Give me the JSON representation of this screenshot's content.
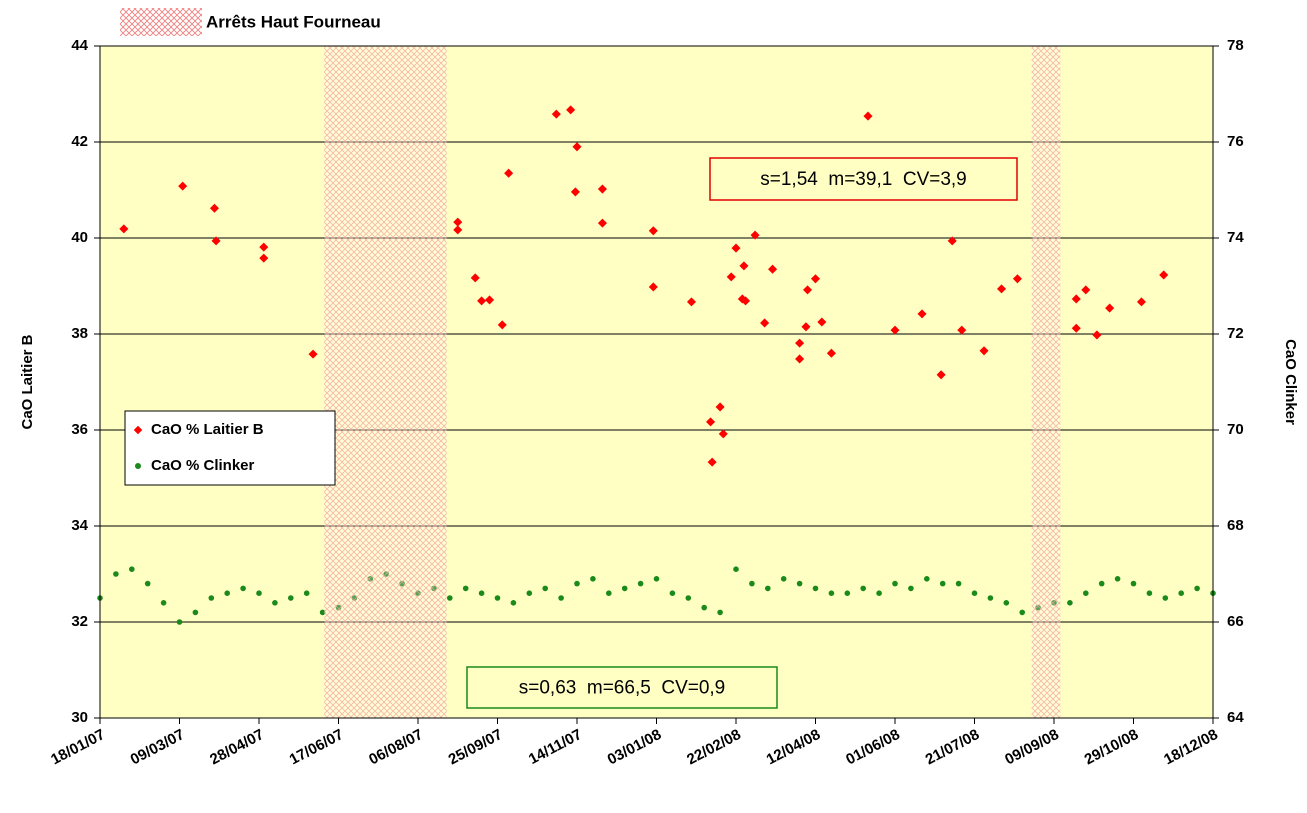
{
  "chart_data": {
    "type": "scatter",
    "y_label": "CaO Laitier B",
    "y2_label": "CaO Clinker",
    "ylim": [
      30,
      44
    ],
    "yticks": [
      30,
      32,
      34,
      36,
      38,
      40,
      42,
      44
    ],
    "y2lim": [
      64,
      78
    ],
    "y2ticks": [
      64,
      66,
      68,
      70,
      72,
      74,
      76,
      78
    ],
    "xlim": [
      "2007-01-18",
      "2008-12-18"
    ],
    "xticks": [
      {
        "value": "2007-01-18",
        "label": "18/01/07"
      },
      {
        "value": "2007-03-09",
        "label": "09/03/07"
      },
      {
        "value": "2007-04-28",
        "label": "28/04/07"
      },
      {
        "value": "2007-06-17",
        "label": "17/06/07"
      },
      {
        "value": "2007-08-06",
        "label": "06/08/07"
      },
      {
        "value": "2007-09-25",
        "label": "25/09/07"
      },
      {
        "value": "2007-11-14",
        "label": "14/11/07"
      },
      {
        "value": "2008-01-03",
        "label": "03/01/08"
      },
      {
        "value": "2008-02-22",
        "label": "22/02/08"
      },
      {
        "value": "2008-04-12",
        "label": "12/04/08"
      },
      {
        "value": "2008-06-01",
        "label": "01/06/08"
      },
      {
        "value": "2008-07-21",
        "label": "21/07/08"
      },
      {
        "value": "2008-09-09",
        "label": "09/09/08"
      },
      {
        "value": "2008-10-29",
        "label": "29/10/08"
      },
      {
        "value": "2008-12-18",
        "label": "18/12/08"
      }
    ],
    "grid": true,
    "background": "#ffffc4",
    "shaded_label": "Arrêts Haut Fourneau",
    "shaded_color": "#f08080",
    "shaded_regions": [
      {
        "start": "2007-06-08",
        "end": "2007-08-24"
      },
      {
        "start": "2008-08-26",
        "end": "2008-09-13"
      }
    ],
    "annotations": [
      {
        "text": "s=1,54  m=39,1  CV=3,9",
        "color": "#e00000"
      },
      {
        "text": "s=0,63  m=66,5  CV=0,9",
        "color": "#1a8a1a"
      }
    ],
    "series": [
      {
        "name": "CaO % Laitier B",
        "color": "#ff0000",
        "axis": "y",
        "x": [
          "2007-02-02",
          "2007-03-11",
          "2007-03-31",
          "2007-04-01",
          "2007-05-01",
          "2007-05-01",
          "2007-06-01",
          "2007-08-31",
          "2007-08-31",
          "2007-09-11",
          "2007-09-15",
          "2007-09-20",
          "2007-09-28",
          "2007-10-02",
          "2007-11-01",
          "2007-11-10",
          "2007-11-14",
          "2007-11-13",
          "2007-11-30",
          "2007-11-30",
          "2008-01-01",
          "2008-01-01",
          "2008-01-25",
          "2008-02-06",
          "2008-02-12",
          "2008-02-14",
          "2008-02-07",
          "2008-02-19",
          "2008-02-22",
          "2008-02-27",
          "2008-02-26",
          "2008-02-28",
          "2008-03-05",
          "2008-03-11",
          "2008-03-16",
          "2008-04-02",
          "2008-04-02",
          "2008-04-06",
          "2008-04-07",
          "2008-04-12",
          "2008-04-16",
          "2008-04-22",
          "2008-05-15",
          "2008-06-01",
          "2008-06-18",
          "2008-06-30",
          "2008-07-07",
          "2008-07-13",
          "2008-07-27",
          "2008-08-07",
          "2008-08-17",
          "2008-09-23",
          "2008-09-23",
          "2008-09-29",
          "2008-10-06",
          "2008-10-14",
          "2008-11-03",
          "2008-11-17"
        ],
        "values": [
          40.19,
          41.08,
          40.62,
          39.94,
          39.81,
          39.58,
          37.58,
          40.33,
          40.17,
          39.17,
          38.69,
          38.71,
          38.19,
          41.35,
          42.58,
          42.67,
          41.9,
          40.96,
          41.02,
          40.31,
          40.15,
          38.98,
          38.67,
          36.17,
          36.48,
          35.92,
          35.33,
          39.19,
          39.79,
          39.42,
          38.73,
          38.69,
          40.06,
          38.23,
          39.35,
          37.81,
          37.48,
          38.15,
          38.92,
          39.15,
          38.25,
          37.6,
          42.54,
          38.08,
          38.42,
          37.15,
          39.94,
          38.08,
          37.65,
          38.94,
          39.15,
          38.73,
          38.12,
          38.92,
          37.98,
          38.54,
          38.67,
          39.23
        ]
      },
      {
        "name": "CaO % Clinker",
        "color": "#1a8a1a",
        "axis": "y2",
        "x": [
          "2007-01-18",
          "2007-01-28",
          "2007-02-07",
          "2007-02-17",
          "2007-02-27",
          "2007-03-09",
          "2007-03-19",
          "2007-03-29",
          "2007-04-08",
          "2007-04-18",
          "2007-04-28",
          "2007-05-08",
          "2007-05-18",
          "2007-05-28",
          "2007-06-07",
          "2007-06-17",
          "2007-06-27",
          "2007-07-07",
          "2007-07-17",
          "2007-07-27",
          "2007-08-06",
          "2007-08-16",
          "2007-08-26",
          "2007-09-05",
          "2007-09-15",
          "2007-09-25",
          "2007-10-05",
          "2007-10-15",
          "2007-10-25",
          "2007-11-04",
          "2007-11-14",
          "2007-11-24",
          "2007-12-04",
          "2007-12-14",
          "2007-12-24",
          "2008-01-03",
          "2008-01-13",
          "2008-01-23",
          "2008-02-02",
          "2008-02-12",
          "2008-02-22",
          "2008-03-03",
          "2008-03-13",
          "2008-03-23",
          "2008-04-02",
          "2008-04-12",
          "2008-04-22",
          "2008-05-02",
          "2008-05-12",
          "2008-05-22",
          "2008-06-01",
          "2008-06-11",
          "2008-06-21",
          "2008-07-01",
          "2008-07-11",
          "2008-07-21",
          "2008-07-31",
          "2008-08-10",
          "2008-08-20",
          "2008-08-30",
          "2008-09-09",
          "2008-09-19",
          "2008-09-29",
          "2008-10-09",
          "2008-10-19",
          "2008-10-29",
          "2008-11-08",
          "2008-11-18",
          "2008-11-28",
          "2008-12-08",
          "2008-12-18"
        ],
        "values": [
          66.5,
          67.0,
          67.1,
          66.8,
          66.4,
          66.0,
          66.2,
          66.5,
          66.6,
          66.7,
          66.6,
          66.4,
          66.5,
          66.6,
          66.2,
          66.3,
          66.5,
          66.9,
          67.0,
          66.8,
          66.6,
          66.7,
          66.5,
          66.7,
          66.6,
          66.5,
          66.4,
          66.6,
          66.7,
          66.5,
          66.8,
          66.9,
          66.6,
          66.7,
          66.8,
          66.9,
          66.6,
          66.5,
          66.3,
          66.2,
          67.1,
          66.8,
          66.7,
          66.9,
          66.8,
          66.7,
          66.6,
          66.6,
          66.7,
          66.6,
          66.8,
          66.7,
          66.9,
          66.8,
          66.8,
          66.6,
          66.5,
          66.4,
          66.2,
          66.3,
          66.4,
          66.4,
          66.6,
          66.8,
          66.9,
          66.8,
          66.6,
          66.5,
          66.6,
          66.7,
          66.6
        ]
      }
    ]
  }
}
